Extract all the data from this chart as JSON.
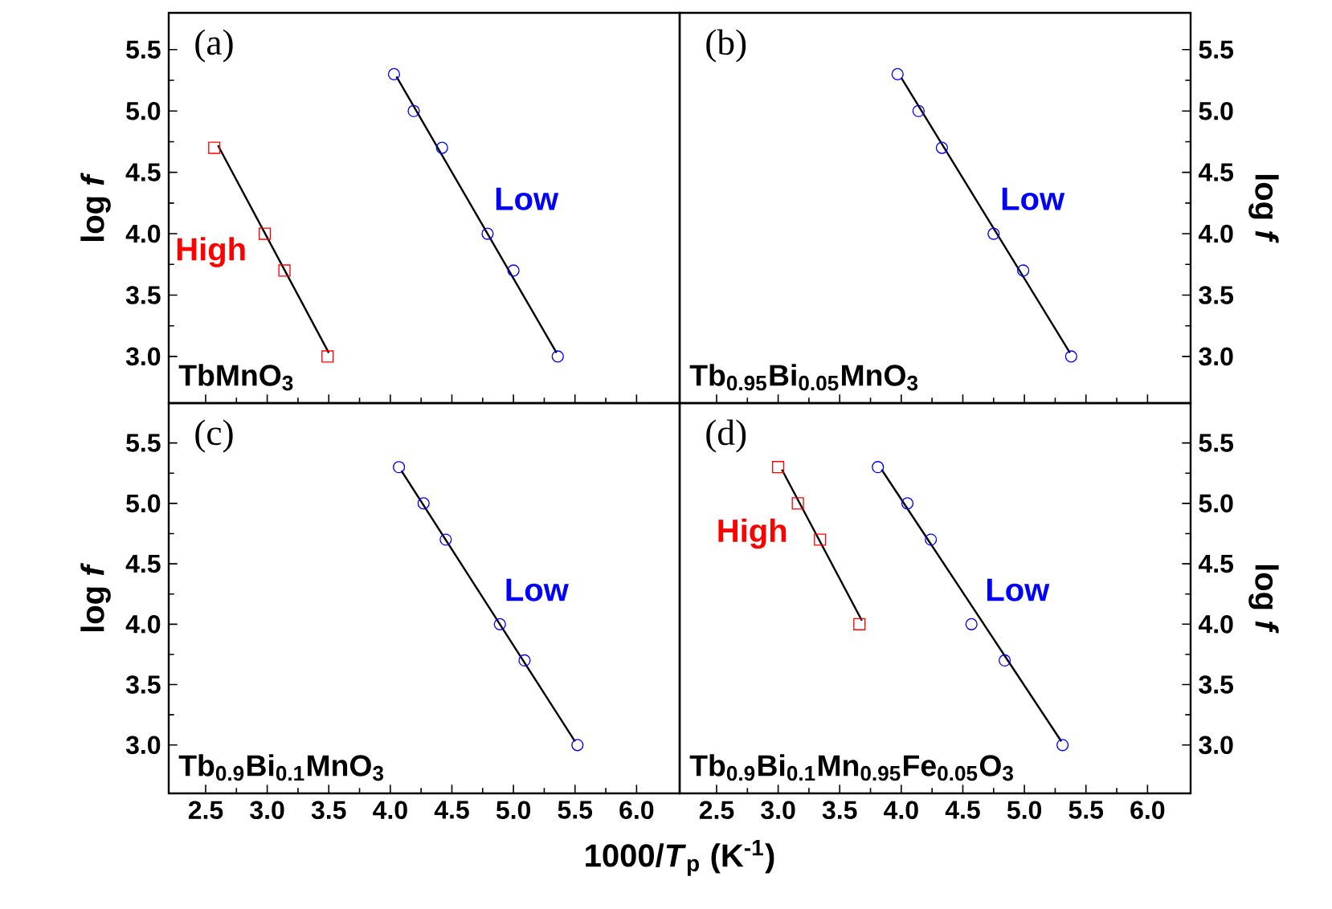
{
  "chart_data": [
    {
      "type": "scatter",
      "annotations": [
        "(a)",
        "TbMnO$_{3}$"
      ],
      "ylabel": "log *f*",
      "xlim": [
        2.2,
        6.35
      ],
      "ylim": [
        2.62,
        5.8
      ],
      "tick_labels": "y",
      "xticks": [
        {
          "value": 2.5,
          "label": null
        },
        {
          "value": 3,
          "label": null
        },
        {
          "value": 3.5,
          "label": null
        },
        {
          "value": 4,
          "label": null
        },
        {
          "value": 4.5,
          "label": null
        },
        {
          "value": 5,
          "label": null
        },
        {
          "value": 5.5,
          "label": null
        },
        {
          "value": 6,
          "label": null
        }
      ],
      "yticks": [
        {
          "value": 3,
          "label": "3.0"
        },
        {
          "value": 3.5,
          "label": "3.5"
        },
        {
          "value": 4,
          "label": "4.0"
        },
        {
          "value": 4.5,
          "label": "4.5"
        },
        {
          "value": 5,
          "label": "5.0"
        },
        {
          "value": 5.5,
          "label": "5.5"
        }
      ],
      "series": [
        {
          "name": "High",
          "color": "#ff0000",
          "marker": "square",
          "x": [
            2.57,
            2.98,
            3.14,
            3.49
          ],
          "values": [
            4.7,
            4.0,
            3.7,
            3.0
          ]
        },
        {
          "type": "line",
          "color": "#000000",
          "x": [
            2.6,
            3.5
          ],
          "values": [
            4.72,
            3.03
          ]
        },
        {
          "name": "Low",
          "color": "#0000ff",
          "marker": "circle",
          "x": [
            4.03,
            4.19,
            4.42,
            4.79,
            5.0,
            5.36
          ],
          "values": [
            5.3,
            5.0,
            4.7,
            4.0,
            3.7,
            3.0
          ]
        },
        {
          "type": "line",
          "color": "#000000",
          "x": [
            4.05,
            5.35
          ],
          "values": [
            5.28,
            3.03
          ]
        }
      ]
    },
    {
      "type": "scatter",
      "annotations": [
        "(b)",
        "Tb$_{0.95}$Bi$_{0.05}$MnO$_{3}$"
      ],
      "ylabel": "log *f*",
      "xlim": [
        2.2,
        6.35
      ],
      "ylim": [
        2.62,
        5.8
      ],
      "tick_labels": "y",
      "xticks": [
        {
          "value": 2.5,
          "label": null
        },
        {
          "value": 3,
          "label": null
        },
        {
          "value": 3.5,
          "label": null
        },
        {
          "value": 4,
          "label": null
        },
        {
          "value": 4.5,
          "label": null
        },
        {
          "value": 5,
          "label": null
        },
        {
          "value": 5.5,
          "label": null
        },
        {
          "value": 6,
          "label": null
        }
      ],
      "yticks": [
        {
          "value": 3,
          "label": "3.0"
        },
        {
          "value": 3.5,
          "label": "3.5"
        },
        {
          "value": 4,
          "label": "4.0"
        },
        {
          "value": 4.5,
          "label": "4.5"
        },
        {
          "value": 5,
          "label": "5.0"
        },
        {
          "value": 5.5,
          "label": "5.5"
        }
      ],
      "series": [
        {
          "name": "Low",
          "color": "#0000ff",
          "marker": "circle",
          "x": [
            3.97,
            4.14,
            4.33,
            4.75,
            4.99,
            5.38
          ],
          "values": [
            5.3,
            5.0,
            4.7,
            4.0,
            3.7,
            3.0
          ]
        },
        {
          "type": "line",
          "color": "#000000",
          "x": [
            4.0,
            5.37
          ],
          "values": [
            5.27,
            3.03
          ]
        }
      ]
    },
    {
      "type": "scatter",
      "annotations": [
        "(c)",
        "Tb$_{0.9}$Bi$_{0.1}$MnO$_{3}$"
      ],
      "ylabel": "log *f*",
      "xlabel": "1000/*T*$_{p}$ (K$^{-1}$)",
      "xlim": [
        2.2,
        6.35
      ],
      "ylim": [
        2.6,
        5.83
      ],
      "xticks": [
        {
          "value": 2.5,
          "label": "2.5"
        },
        {
          "value": 3,
          "label": "3.0"
        },
        {
          "value": 3.5,
          "label": "3.5"
        },
        {
          "value": 4,
          "label": "4.0"
        },
        {
          "value": 4.5,
          "label": "4.5"
        },
        {
          "value": 5,
          "label": "5.0"
        },
        {
          "value": 5.5,
          "label": "5.5"
        },
        {
          "value": 6,
          "label": "6.0"
        }
      ],
      "yticks": [
        {
          "value": 3,
          "label": "3.0"
        },
        {
          "value": 3.5,
          "label": "3.5"
        },
        {
          "value": 4,
          "label": "4.0"
        },
        {
          "value": 4.5,
          "label": "4.5"
        },
        {
          "value": 5,
          "label": "5.0"
        },
        {
          "value": 5.5,
          "label": "5.5"
        }
      ],
      "series": [
        {
          "name": "Low",
          "color": "#0000ff",
          "marker": "circle",
          "x": [
            4.07,
            4.27,
            4.45,
            4.89,
            5.09,
            5.52
          ],
          "values": [
            5.3,
            5.0,
            4.7,
            4.0,
            3.7,
            3.0
          ]
        },
        {
          "type": "line",
          "color": "#000000",
          "x": [
            4.09,
            5.5
          ],
          "values": [
            5.27,
            3.03
          ]
        }
      ]
    },
    {
      "type": "scatter",
      "annotations": [
        "(d)",
        "Tb$_{0.9}$Bi$_{0.1}$Mn$_{0.95}$Fe$_{0.05}$O$_{3}$"
      ],
      "ylabel": "log *f*",
      "xlim": [
        2.2,
        6.35
      ],
      "ylim": [
        2.6,
        5.83
      ],
      "xticks": [
        {
          "value": 2.5,
          "label": "2.5"
        },
        {
          "value": 3,
          "label": "3.0"
        },
        {
          "value": 3.5,
          "label": "3.5"
        },
        {
          "value": 4,
          "label": "4.0"
        },
        {
          "value": 4.5,
          "label": "4.5"
        },
        {
          "value": 5,
          "label": "5.0"
        },
        {
          "value": 5.5,
          "label": "5.5"
        },
        {
          "value": 6,
          "label": "6.0"
        }
      ],
      "yticks": [
        {
          "value": 3,
          "label": "3.0"
        },
        {
          "value": 3.5,
          "label": "3.5"
        },
        {
          "value": 4,
          "label": "4.0"
        },
        {
          "value": 4.5,
          "label": "4.5"
        },
        {
          "value": 5,
          "label": "5.0"
        },
        {
          "value": 5.5,
          "label": "5.5"
        }
      ],
      "series": [
        {
          "name": "High",
          "color": "#ff0000",
          "marker": "square",
          "x": [
            3.0,
            3.16,
            3.34,
            3.66
          ],
          "values": [
            5.3,
            5.0,
            4.7,
            4.0
          ]
        },
        {
          "type": "line",
          "color": "#000000",
          "x": [
            3.03,
            3.68
          ],
          "values": [
            5.28,
            4.03
          ]
        },
        {
          "name": "Low",
          "color": "#0000ff",
          "marker": "circle",
          "x": [
            3.81,
            4.05,
            4.24,
            4.57,
            4.84,
            5.31
          ],
          "values": [
            5.3,
            5.0,
            4.7,
            4.0,
            3.7,
            3.0
          ]
        },
        {
          "type": "line",
          "color": "#000000",
          "x": [
            3.84,
            5.3
          ],
          "values": [
            5.28,
            3.03
          ]
        }
      ]
    }
  ]
}
